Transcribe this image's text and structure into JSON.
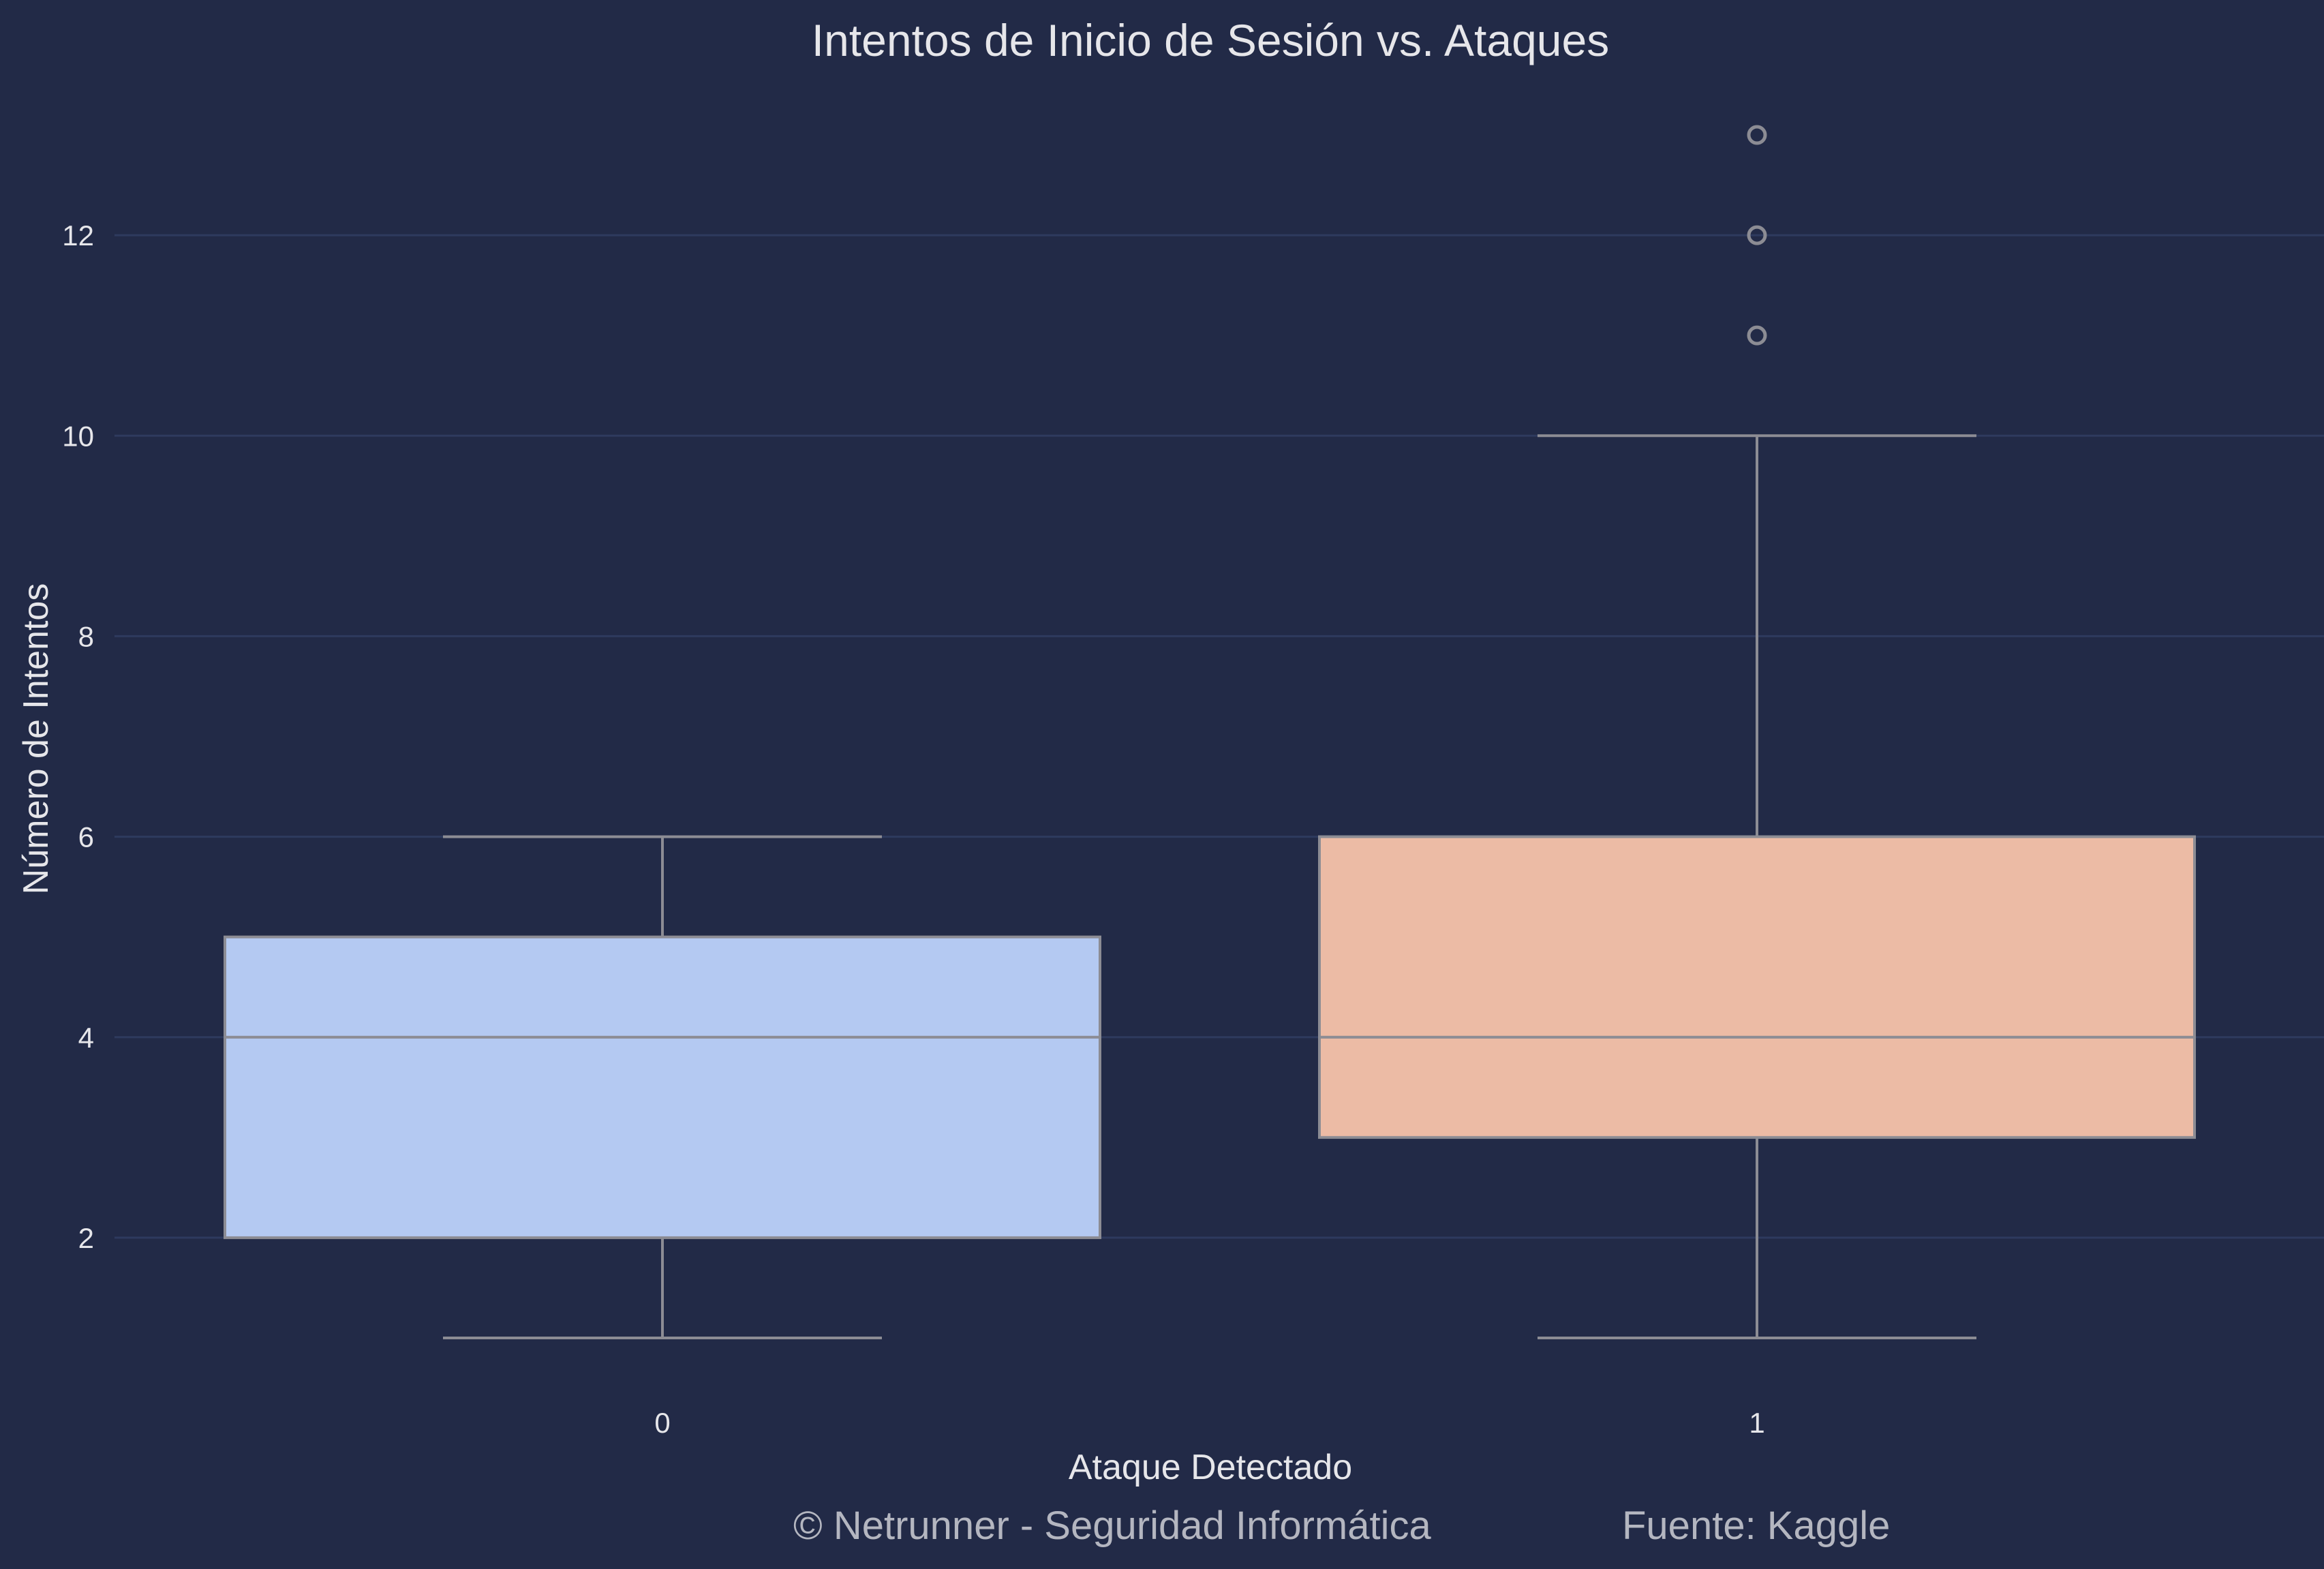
{
  "chart_data": {
    "type": "boxplot",
    "title": "Intentos de Inicio de Sesión vs. Ataques",
    "xlabel": "Ataque Detectado",
    "ylabel": "Número de Intentos",
    "categories": [
      "0",
      "1"
    ],
    "ylim": [
      0.5,
      13.5
    ],
    "yticks": [
      2,
      4,
      6,
      8,
      10,
      12
    ],
    "grid": true,
    "legend": "none",
    "boxes": [
      {
        "category": "0",
        "min": 1,
        "q1": 2,
        "median": 4,
        "q3": 5,
        "max": 6,
        "outliers": [],
        "color": "#b4c9f2"
      },
      {
        "category": "1",
        "min": 1,
        "q1": 3,
        "median": 4,
        "q3": 6,
        "max": 10,
        "outliers": [
          11,
          12,
          13
        ],
        "color": "#ecbba5"
      }
    ]
  },
  "footer": {
    "credit": "© Netrunner - Seguridad Informática",
    "source": "Fuente: Kaggle"
  },
  "colors": {
    "background": "#222a47",
    "grid": "#2e3a5e",
    "box_edge": "#8c8c94",
    "text": "#e6e6ea",
    "footer_text": "#b4b6c0"
  }
}
